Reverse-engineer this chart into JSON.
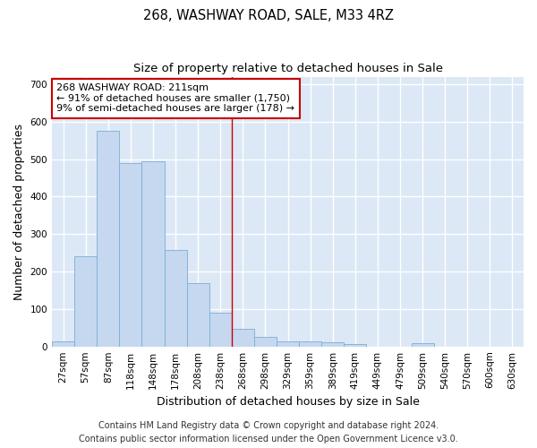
{
  "title": "268, WASHWAY ROAD, SALE, M33 4RZ",
  "subtitle": "Size of property relative to detached houses in Sale",
  "xlabel": "Distribution of detached houses by size in Sale",
  "ylabel": "Number of detached properties",
  "bins": [
    "27sqm",
    "57sqm",
    "87sqm",
    "118sqm",
    "148sqm",
    "178sqm",
    "208sqm",
    "238sqm",
    "268sqm",
    "298sqm",
    "329sqm",
    "359sqm",
    "389sqm",
    "419sqm",
    "449sqm",
    "479sqm",
    "509sqm",
    "540sqm",
    "570sqm",
    "600sqm",
    "630sqm"
  ],
  "values": [
    13,
    240,
    575,
    490,
    495,
    258,
    170,
    90,
    48,
    25,
    13,
    13,
    10,
    7,
    0,
    0,
    8,
    0,
    0,
    0,
    0
  ],
  "bar_color": "#c5d8f0",
  "bar_edge_color": "#7aadd4",
  "vline_x": 7.5,
  "vline_color": "#cc0000",
  "annotation_text": "268 WASHWAY ROAD: 211sqm\n← 91% of detached houses are smaller (1,750)\n9% of semi-detached houses are larger (178) →",
  "annotation_box_color": "#ffffff",
  "annotation_box_edge_color": "#cc0000",
  "ylim": [
    0,
    720
  ],
  "yticks": [
    0,
    100,
    200,
    300,
    400,
    500,
    600,
    700
  ],
  "plot_bg_color": "#dce8f5",
  "grid_color": "#ffffff",
  "fig_bg_color": "#ffffff",
  "footer_line1": "Contains HM Land Registry data © Crown copyright and database right 2024.",
  "footer_line2": "Contains public sector information licensed under the Open Government Licence v3.0.",
  "title_fontsize": 10.5,
  "subtitle_fontsize": 9.5,
  "axis_label_fontsize": 9,
  "tick_fontsize": 7.5,
  "annotation_fontsize": 8,
  "footer_fontsize": 7
}
